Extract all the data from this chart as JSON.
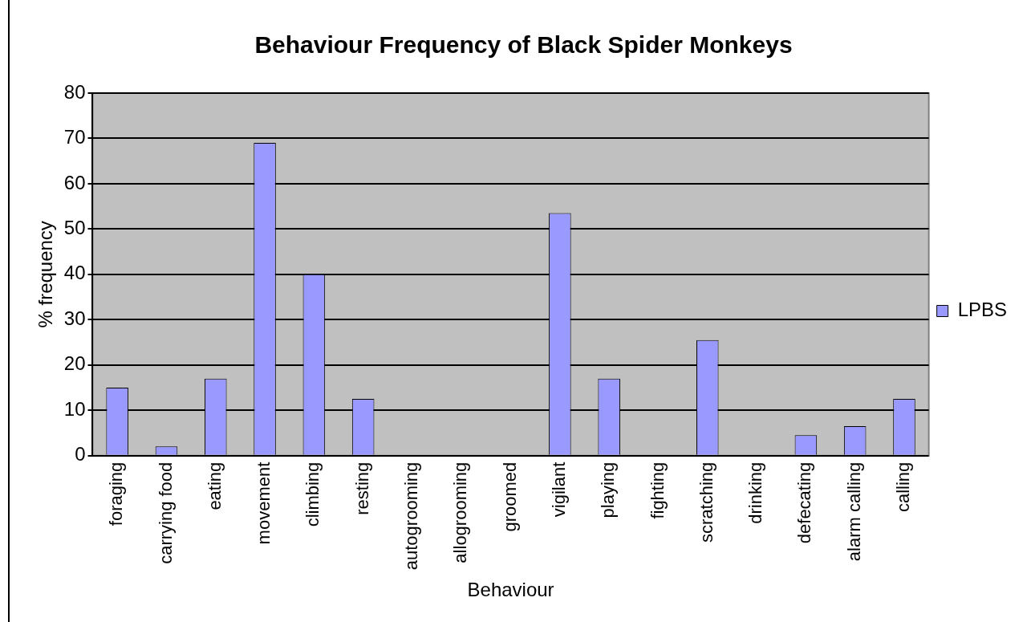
{
  "chart_data": {
    "type": "bar",
    "title": "Behaviour Frequency of Black Spider Monkeys",
    "xlabel": "Behaviour",
    "ylabel": "% frequency",
    "categories": [
      "foraging",
      "carrying food",
      "eating",
      "movement",
      "climbing",
      "resting",
      "autogrooming",
      "allogrooming",
      "groomed",
      "vigilant",
      "playing",
      "fighting",
      "scratching",
      "drinking",
      "defecating",
      "alarm calling",
      "calling"
    ],
    "series": [
      {
        "name": "LPBS",
        "color": "#9999ff",
        "values": [
          15,
          2,
          17,
          69,
          40,
          12.5,
          0,
          0,
          0,
          53.5,
          17,
          0,
          25.5,
          0,
          4.5,
          6.5,
          12.5
        ]
      }
    ],
    "ylim": [
      0,
      80
    ],
    "yticks": [
      0,
      10,
      20,
      30,
      40,
      50,
      60,
      70,
      80
    ],
    "grid": "y",
    "legend": "right"
  }
}
